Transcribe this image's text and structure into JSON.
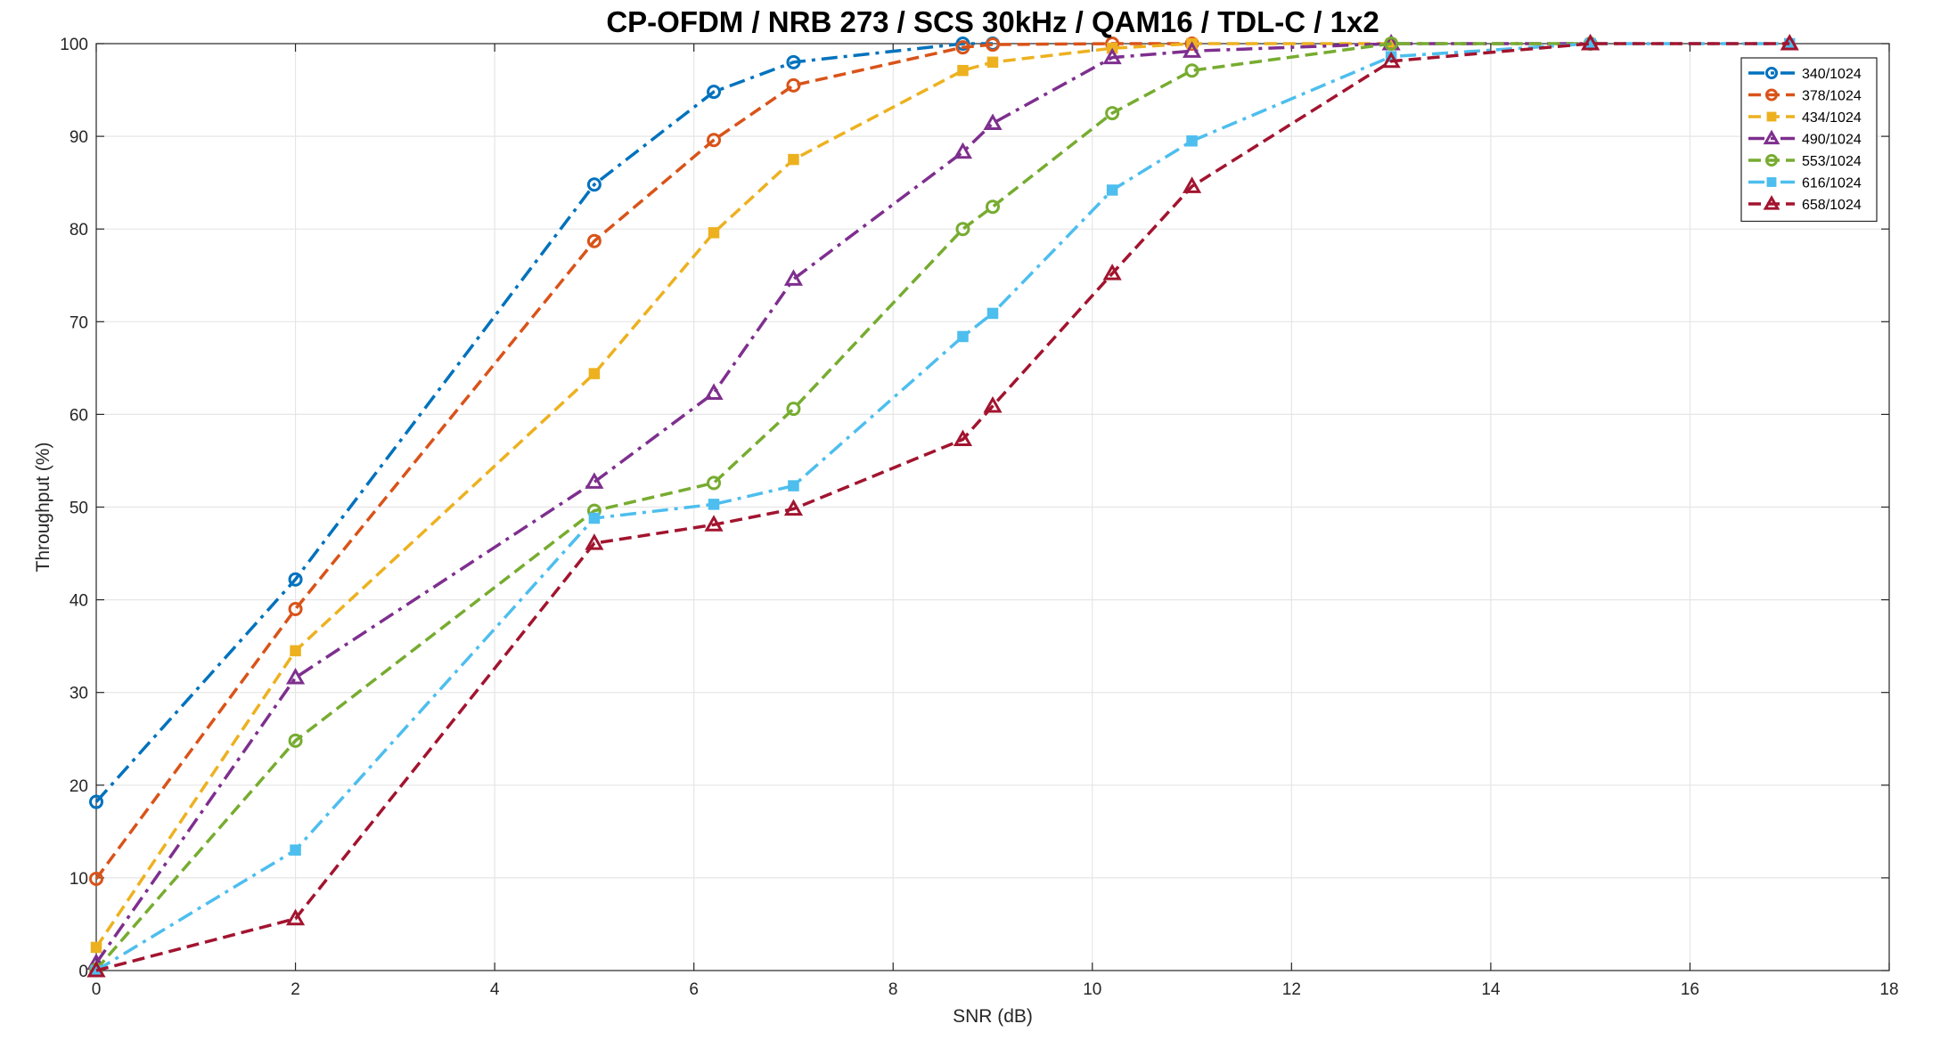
{
  "chart_data": {
    "type": "line",
    "title": "CP-OFDM / NRB 273 / SCS 30kHz / QAM16 / TDL-C / 1x2",
    "xlabel": "SNR (dB)",
    "ylabel": "Throughput (%)",
    "xlim": [
      0,
      18
    ],
    "ylim": [
      0,
      100
    ],
    "xticks": [
      0,
      2,
      4,
      6,
      8,
      10,
      12,
      14,
      16,
      18
    ],
    "yticks": [
      0,
      10,
      20,
      30,
      40,
      50,
      60,
      70,
      80,
      90,
      100
    ],
    "grid": true,
    "legend_position": "top-right",
    "series": [
      {
        "name": "340/1024",
        "color": "#0072BD",
        "marker": "circle",
        "x": [
          0,
          2,
          5,
          6.2,
          7,
          8.7,
          9
        ],
        "y": [
          18.2,
          42.2,
          84.8,
          94.8,
          98.0,
          100,
          100
        ]
      },
      {
        "name": "378/1024",
        "color": "#D95319",
        "marker": "circle",
        "x": [
          0,
          2,
          5,
          6.2,
          7,
          8.7,
          9,
          10.2,
          11
        ],
        "y": [
          9.9,
          39.0,
          78.7,
          89.6,
          95.5,
          99.6,
          99.9,
          100,
          100
        ]
      },
      {
        "name": "434/1024",
        "color": "#EDB120",
        "marker": "square",
        "x": [
          0,
          2,
          5,
          6.2,
          7,
          8.7,
          9,
          10.2,
          11,
          13
        ],
        "y": [
          2.5,
          34.5,
          64.4,
          79.6,
          87.5,
          97.1,
          98.0,
          99.5,
          100,
          100
        ]
      },
      {
        "name": "490/1024",
        "color": "#7E2F8E",
        "marker": "triangle",
        "x": [
          0,
          2,
          5,
          6.2,
          7,
          8.7,
          9,
          10.2,
          11,
          13,
          15
        ],
        "y": [
          0.8,
          31.6,
          52.7,
          62.3,
          74.6,
          88.3,
          91.4,
          98.5,
          99.2,
          100,
          100
        ]
      },
      {
        "name": "553/1024",
        "color": "#77AC30",
        "marker": "circle",
        "x": [
          0,
          2,
          5,
          6.2,
          7,
          8.7,
          9,
          10.2,
          11,
          13,
          15
        ],
        "y": [
          0.1,
          24.8,
          49.6,
          52.6,
          60.6,
          80.0,
          82.4,
          92.5,
          97.1,
          100,
          100
        ]
      },
      {
        "name": "616/1024",
        "color": "#4DBEEE",
        "marker": "square",
        "x": [
          0,
          2,
          5,
          6.2,
          7,
          8.7,
          9,
          10.2,
          11,
          13,
          15,
          17
        ],
        "y": [
          0,
          13.0,
          48.8,
          50.3,
          52.3,
          68.4,
          70.9,
          84.2,
          89.5,
          98.6,
          100,
          100
        ]
      },
      {
        "name": "658/1024",
        "color": "#A2142F",
        "marker": "triangle",
        "x": [
          0,
          2,
          5,
          6.2,
          7,
          8.7,
          9,
          10.2,
          11,
          13,
          15,
          17
        ],
        "y": [
          0,
          5.6,
          46.1,
          48.1,
          49.8,
          57.3,
          60.9,
          75.2,
          84.6,
          98.1,
          100,
          100
        ]
      }
    ]
  }
}
